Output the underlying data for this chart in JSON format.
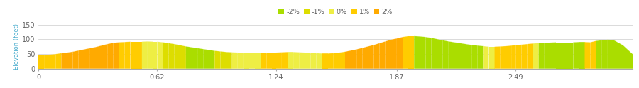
{
  "ylabel": "Elevation (feet)",
  "xlim": [
    0,
    3.1
  ],
  "ylim": [
    0,
    150
  ],
  "yticks": [
    0,
    50,
    100,
    150
  ],
  "xticks": [
    0,
    0.62,
    1.24,
    1.87,
    2.49
  ],
  "xticklabels": [
    "0",
    "0.62",
    "1.24",
    "1.87",
    "2.49"
  ],
  "background_color": "#ffffff",
  "grid_color": "#cccccc",
  "legend_labels": [
    "-2%",
    "-1%",
    "0%",
    "1%",
    "2%"
  ],
  "legend_colors": [
    "#aadd00",
    "#dddd00",
    "#eeee44",
    "#ffcc00",
    "#ffaa00"
  ],
  "x": [
    0.0,
    0.03,
    0.06,
    0.09,
    0.12,
    0.15,
    0.18,
    0.21,
    0.24,
    0.27,
    0.3,
    0.33,
    0.36,
    0.39,
    0.42,
    0.45,
    0.48,
    0.51,
    0.54,
    0.57,
    0.6,
    0.62,
    0.65,
    0.68,
    0.71,
    0.74,
    0.77,
    0.8,
    0.83,
    0.86,
    0.89,
    0.92,
    0.95,
    0.98,
    1.01,
    1.04,
    1.07,
    1.1,
    1.13,
    1.16,
    1.19,
    1.22,
    1.24,
    1.27,
    1.3,
    1.33,
    1.36,
    1.39,
    1.42,
    1.45,
    1.48,
    1.51,
    1.54,
    1.57,
    1.6,
    1.63,
    1.66,
    1.69,
    1.72,
    1.75,
    1.78,
    1.81,
    1.84,
    1.87,
    1.9,
    1.93,
    1.96,
    1.99,
    2.02,
    2.05,
    2.08,
    2.11,
    2.14,
    2.17,
    2.2,
    2.23,
    2.26,
    2.29,
    2.32,
    2.35,
    2.38,
    2.41,
    2.44,
    2.47,
    2.49,
    2.52,
    2.55,
    2.58,
    2.61,
    2.64,
    2.67,
    2.7,
    2.73,
    2.76,
    2.79,
    2.82,
    2.85,
    2.88,
    2.91,
    2.94,
    2.97,
    3.0,
    3.05,
    3.1
  ],
  "y": [
    47,
    47,
    48,
    50,
    53,
    55,
    58,
    62,
    66,
    70,
    74,
    79,
    84,
    88,
    90,
    91,
    92,
    92,
    92,
    93,
    92,
    92,
    90,
    87,
    84,
    80,
    76,
    73,
    70,
    67,
    64,
    61,
    59,
    57,
    56,
    55,
    54,
    54,
    53,
    53,
    54,
    55,
    55,
    56,
    57,
    57,
    56,
    55,
    54,
    53,
    52,
    52,
    53,
    55,
    58,
    62,
    66,
    71,
    76,
    81,
    87,
    93,
    99,
    103,
    108,
    111,
    111,
    110,
    108,
    105,
    101,
    97,
    93,
    90,
    87,
    84,
    81,
    79,
    77,
    75,
    75,
    76,
    77,
    79,
    80,
    82,
    84,
    86,
    87,
    88,
    89,
    90,
    90,
    90,
    90,
    91,
    91,
    90,
    95,
    97,
    99,
    98,
    80,
    50
  ],
  "segment_colors": [
    "#ffcc00",
    "#ffcc00",
    "#ffcc00",
    "#ffcc00",
    "#ffaa00",
    "#ffaa00",
    "#ffaa00",
    "#ffaa00",
    "#ffaa00",
    "#ffaa00",
    "#ffaa00",
    "#ffaa00",
    "#ffaa00",
    "#ffaa00",
    "#ffcc00",
    "#ffcc00",
    "#ffcc00",
    "#ffcc00",
    "#eeee44",
    "#eeee44",
    "#eeee44",
    "#eeee44",
    "#dddd00",
    "#dddd00",
    "#dddd00",
    "#dddd00",
    "#aadd00",
    "#aadd00",
    "#aadd00",
    "#aadd00",
    "#aadd00",
    "#dddd00",
    "#dddd00",
    "#dddd00",
    "#eeee44",
    "#eeee44",
    "#eeee44",
    "#eeee44",
    "#eeee44",
    "#ffcc00",
    "#ffcc00",
    "#ffcc00",
    "#ffcc00",
    "#ffcc00",
    "#eeee44",
    "#eeee44",
    "#eeee44",
    "#eeee44",
    "#eeee44",
    "#eeee44",
    "#ffcc00",
    "#ffcc00",
    "#ffcc00",
    "#ffcc00",
    "#ffaa00",
    "#ffaa00",
    "#ffaa00",
    "#ffaa00",
    "#ffaa00",
    "#ffaa00",
    "#ffaa00",
    "#ffaa00",
    "#ffaa00",
    "#ffaa00",
    "#ffcc00",
    "#ffcc00",
    "#aadd00",
    "#aadd00",
    "#aadd00",
    "#aadd00",
    "#aadd00",
    "#aadd00",
    "#aadd00",
    "#aadd00",
    "#aadd00",
    "#aadd00",
    "#aadd00",
    "#aadd00",
    "#eeee44",
    "#eeee44",
    "#ffcc00",
    "#ffcc00",
    "#ffcc00",
    "#ffcc00",
    "#ffcc00",
    "#ffcc00",
    "#ffcc00",
    "#eeee44",
    "#aadd00",
    "#aadd00",
    "#aadd00",
    "#aadd00",
    "#aadd00",
    "#aadd00",
    "#aadd00",
    "#aadd00",
    "#ffcc00",
    "#ffcc00",
    "#aadd00",
    "#aadd00",
    "#aadd00",
    "#aadd00",
    "#aadd00",
    "#aadd00"
  ]
}
